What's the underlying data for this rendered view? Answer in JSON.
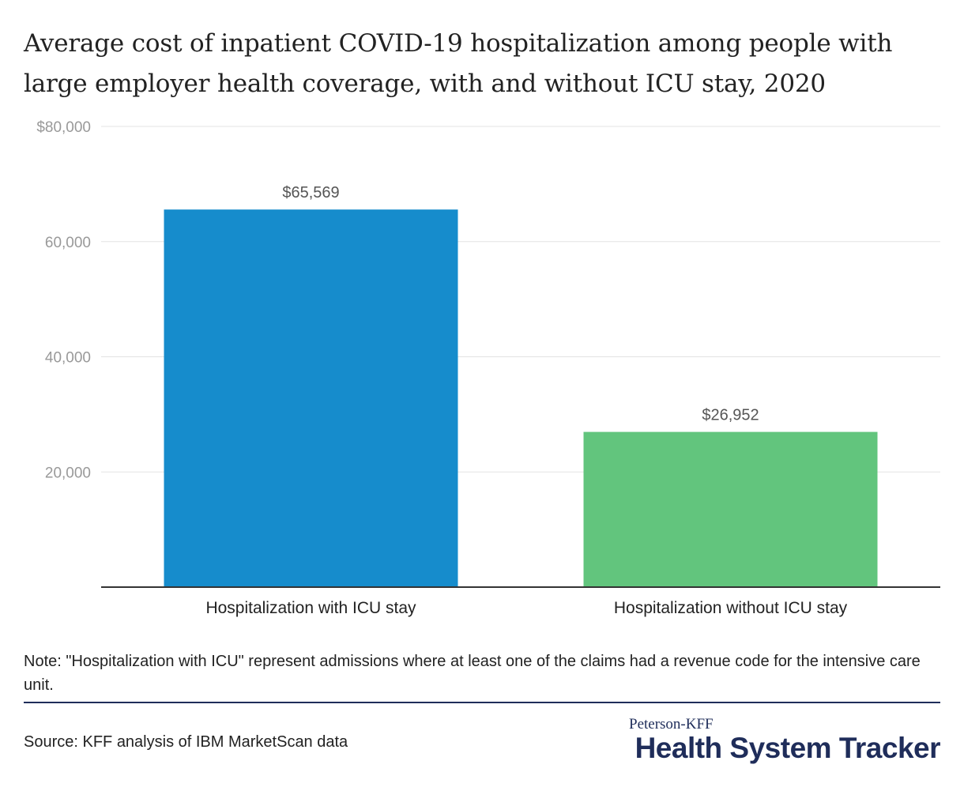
{
  "title": "Average cost of inpatient COVID-19 hospitalization among people with large employer health coverage, with and without ICU stay, 2020",
  "note": "Note: \"Hospitalization with ICU\" represent admissions where at least one of the claims had a revenue code for the intensive care unit.",
  "source": "Source: KFF analysis of IBM MarketScan data",
  "brand": {
    "top": "Peterson-KFF",
    "main": "Health System Tracker"
  },
  "chart_data": {
    "type": "bar",
    "title": "Average cost of inpatient COVID-19 hospitalization among people with large employer health coverage, with and without ICU stay, 2020",
    "xlabel": "",
    "ylabel": "",
    "categories": [
      "Hospitalization with ICU stay",
      "Hospitalization without ICU stay"
    ],
    "values": [
      65569,
      26952
    ],
    "value_labels": [
      "$65,569",
      "$26,952"
    ],
    "colors": [
      "#168ccc",
      "#62c57d"
    ],
    "ylim": [
      0,
      80000
    ],
    "yticks": [
      20000,
      40000,
      60000,
      80000
    ],
    "ytick_labels": [
      "20,000",
      "40,000",
      "60,000",
      "$80,000"
    ],
    "grid": true,
    "legend": "none"
  }
}
